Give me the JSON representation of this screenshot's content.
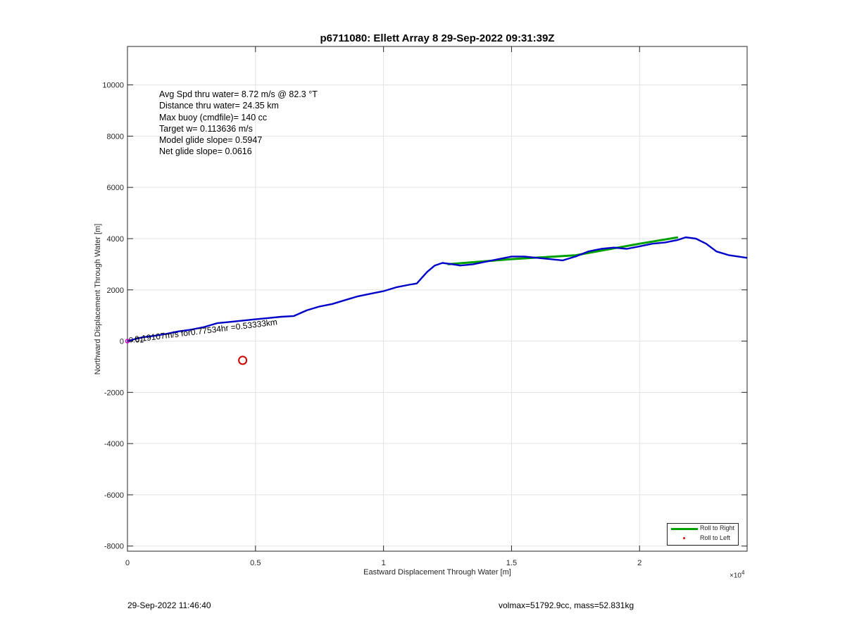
{
  "chart_data": {
    "type": "line",
    "title": "p6711080: Ellett Array 8 29-Sep-2022 09:31:39Z",
    "xlabel": "Eastward Displacement Through Water [m]",
    "ylabel": "Northward Displacement Through Water [m]",
    "x_exponent_base": "×10",
    "x_exponent": "4",
    "xlim": [
      0,
      24200
    ],
    "ylim": [
      -8200,
      11500
    ],
    "xticks": [
      0,
      5000,
      10000,
      15000,
      20000
    ],
    "xtick_labels": [
      "0",
      "0.5",
      "1",
      "1.5",
      "2"
    ],
    "yticks": [
      -8000,
      -6000,
      -4000,
      -2000,
      0,
      2000,
      4000,
      6000,
      8000,
      10000
    ],
    "ytick_labels": [
      "-8000",
      "-6000",
      "-4000",
      "-2000",
      "0",
      "2000",
      "4000",
      "6000",
      "8000",
      "10000"
    ],
    "grid": true,
    "legend_position": "bottom-right",
    "series": [
      {
        "name": "Roll to Right",
        "style": "line",
        "color": "#00a000",
        "x": [
          12500,
          15000,
          17500,
          20000,
          21500
        ],
        "y": [
          3000,
          3200,
          3350,
          3800,
          4050
        ]
      },
      {
        "name": "Roll to Left",
        "style": "dots",
        "color": "#e00000",
        "x": [],
        "y": []
      },
      {
        "name": "",
        "style": "track",
        "color": "#0000c8",
        "x": [
          0,
          300,
          600,
          1000,
          1500,
          2000,
          2500,
          3000,
          3500,
          4000,
          4500,
          5000,
          5500,
          6000,
          6500,
          7000,
          7500,
          8000,
          8500,
          9000,
          9500,
          10000,
          10500,
          11000,
          11300,
          11700,
          12000,
          12300,
          12700,
          13000,
          13500,
          14000,
          14500,
          15000,
          15500,
          16000,
          16500,
          17000,
          17500,
          18000,
          18500,
          19000,
          19500,
          20000,
          20500,
          21000,
          21500,
          21800,
          22200,
          22600,
          23000,
          23500,
          24200
        ],
        "y": [
          0,
          80,
          150,
          200,
          280,
          380,
          450,
          550,
          700,
          750,
          800,
          850,
          900,
          950,
          980,
          1200,
          1350,
          1450,
          1600,
          1750,
          1850,
          1950,
          2100,
          2200,
          2250,
          2700,
          2950,
          3050,
          3000,
          2950,
          3000,
          3100,
          3200,
          3300,
          3300,
          3250,
          3200,
          3150,
          3300,
          3500,
          3600,
          3650,
          3600,
          3700,
          3800,
          3850,
          3950,
          4050,
          4000,
          3800,
          3500,
          3350,
          3250
        ]
      }
    ],
    "markers": [
      {
        "type": "circle",
        "color": "#cc0000",
        "x": 4500,
        "y": -750
      }
    ],
    "annotations": {
      "segment_text": "0.19107m/s for0.77534hr =0.53333km",
      "origin_text": "0.01"
    }
  },
  "stats": {
    "line1": "Avg Spd thru water=  8.72 m/s @  82.3 °T",
    "line2": "Distance thru water= 24.35 km",
    "line3": "Max buoy (cmdfile)= 140 cc",
    "line4": "Target w= 0.113636 m/s",
    "line5": "Model glide slope= 0.5947",
    "line6": "Net glide slope= 0.0616"
  },
  "footer": {
    "timestamp": "29-Sep-2022 11:46:40",
    "summary": "volmax=51792.9cc, mass=52.831kg"
  }
}
